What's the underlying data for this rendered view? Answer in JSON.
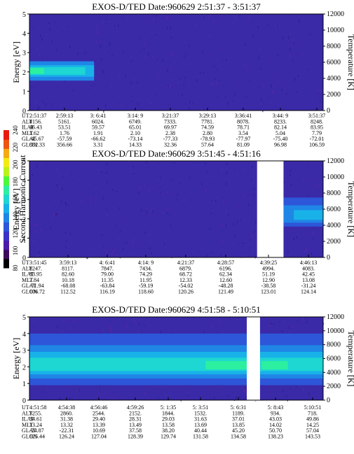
{
  "colorbar": {
    "label": "Second Harmonic Current",
    "ticks": [
      "80",
      "100",
      "120",
      "140",
      "160",
      "180",
      "200",
      "220",
      "240"
    ],
    "colors": [
      "#000000",
      "#3b0a5c",
      "#4b1aa8",
      "#3a33c6",
      "#2d56d9",
      "#1f86e6",
      "#18b2e8",
      "#1ed6d2",
      "#2cf0a0",
      "#4cf83a",
      "#b8f21c",
      "#f2ea14",
      "#f5a915",
      "#ee5413",
      "#e81b10"
    ]
  },
  "chart_data": [
    {
      "type": "heatmap",
      "title": "EXOS-D/TED   Date:960629  2:51:37 - 3:51:37",
      "ylabel": "Energy [eV]",
      "y2label": "Temperature [K]",
      "ylim": [
        0,
        5
      ],
      "y2lim": [
        0,
        12000
      ],
      "yticks": [
        "0",
        "1",
        "2",
        "3",
        "4",
        "5"
      ],
      "y2ticks": [
        "0",
        "2000",
        "4000",
        "6000",
        "8000",
        "10000",
        "12000"
      ],
      "background_color": "#3a2aa8",
      "gaps": [],
      "bands": [
        {
          "x0": 0.0,
          "x1": 0.22,
          "y0": 1.55,
          "y1": 2.55,
          "color": "#1f86e6"
        },
        {
          "x0": 0.0,
          "x1": 0.22,
          "y0": 1.75,
          "y1": 2.35,
          "color": "#18b2e8"
        },
        {
          "x0": 0.0,
          "x1": 0.19,
          "y0": 1.85,
          "y1": 2.25,
          "color": "#1ed6d2"
        },
        {
          "x0": 0.0,
          "x1": 0.05,
          "y0": 1.9,
          "y1": 2.2,
          "color": "#2cf0a0"
        }
      ],
      "table": {
        "labels": [
          "UT",
          "ALT",
          "ILAT",
          "MLT",
          "GLAT",
          "GLON"
        ],
        "columns": [
          [
            "2:51:37",
            "4156.",
            "46.43",
            "1.62",
            "-45.67",
            "352.33"
          ],
          [
            "2:59:13",
            "5161.",
            "53.51",
            "1.76",
            "-57.59",
            "356.66"
          ],
          [
            "3: 6:41",
            "6024.",
            "59.57",
            "1.91",
            "-66.62",
            "3.31"
          ],
          [
            "3:14: 9",
            "6749.",
            "65.01",
            "2.10",
            "-73.14",
            "14.33"
          ],
          [
            "3:21:37",
            "7333.",
            "69.97",
            "2.38",
            "-77.33",
            "32.36"
          ],
          [
            "3:29:13",
            "7781.",
            "74.59",
            "2.80",
            "-78.93",
            "57.64"
          ],
          [
            "3:36:41",
            "8078.",
            "78.71",
            "3.54",
            "-77.97",
            "81.09"
          ],
          [
            "3:44: 9",
            "8233.",
            "82.14",
            "5.04",
            "-75.40",
            "96.98"
          ],
          [
            "3:51:37",
            "8248.",
            "83.95",
            "7.79",
            "-72.01",
            "106.59"
          ]
        ]
      }
    },
    {
      "type": "heatmap",
      "title": "EXOS-D/TED   Date:960629  3:51:45 - 4:51:16",
      "ylabel": "Energy [eV]",
      "y2label": "Temperature [K]",
      "ylim": [
        0,
        5
      ],
      "y2lim": [
        0,
        12000
      ],
      "yticks": [
        "0",
        "1",
        "2",
        "3",
        "4",
        "5"
      ],
      "y2ticks": [
        "0",
        "2000",
        "4000",
        "6000",
        "8000",
        "10000",
        "12000"
      ],
      "background_color": "#3a2aa8",
      "gaps": [
        {
          "x0": 0.775,
          "x1": 0.865
        }
      ],
      "bands": [
        {
          "x0": 0.865,
          "x1": 1.0,
          "y0": 1.6,
          "y1": 3.1,
          "color": "#2d56d9"
        },
        {
          "x0": 0.865,
          "x1": 1.0,
          "y0": 1.8,
          "y1": 2.7,
          "color": "#1f86e6"
        },
        {
          "x0": 0.9,
          "x1": 1.0,
          "y0": 1.95,
          "y1": 2.45,
          "color": "#18b2e8"
        }
      ],
      "table": {
        "labels": [
          "UT",
          "ALT",
          "ILAT",
          "MLT",
          "GLAT",
          "GLON"
        ],
        "columns": [
          [
            "3:51:45",
            "8247.",
            "83.95",
            "7.84",
            "-71.94",
            "106.72"
          ],
          [
            "3:59:13",
            "8117.",
            "82.60",
            "10.18",
            "-68.08",
            "112.52"
          ],
          [
            "4: 6:41",
            "7847.",
            "79.00",
            "11.35",
            "-63.84",
            "116.19"
          ],
          [
            "4:14: 9",
            "7434.",
            "74.29",
            "11.95",
            "-59.19",
            "118.60"
          ],
          [
            "4:21:37",
            "6879.",
            "68.72",
            "12.33",
            "-54.02",
            "120.26"
          ],
          [
            "4:28:57",
            "6196.",
            "62.34",
            "12.60",
            "-48.28",
            "121.49"
          ],
          [
            "4:39:25",
            "4994.",
            "51.19",
            "12.90",
            "-38.58",
            "123.01"
          ],
          [
            "4:46:13",
            "4083.",
            "42.45",
            "13.08",
            "-31.24",
            "124.14"
          ]
        ]
      }
    },
    {
      "type": "heatmap",
      "title": "EXOS-D/TED   Date:960629  4:51:58 - 5:10:51",
      "ylabel": "Energy [eV]",
      "y2label": "Temperature [K]",
      "ylim": [
        0,
        5
      ],
      "y2lim": [
        0,
        12000
      ],
      "yticks": [
        "0",
        "1",
        "2",
        "3",
        "4",
        "5"
      ],
      "y2ticks": [
        "0",
        "2000",
        "4000",
        "6000",
        "8000",
        "10000",
        "12000"
      ],
      "background_color": "#3a2aa8",
      "gaps": [
        {
          "x0": 0.74,
          "x1": 0.785
        }
      ],
      "bands": [
        {
          "x0": 0.0,
          "x1": 1.0,
          "y0": 0.9,
          "y1": 4.0,
          "color": "#2d56d9"
        },
        {
          "x0": 0.0,
          "x1": 1.0,
          "y0": 1.3,
          "y1": 3.3,
          "color": "#1f86e6"
        },
        {
          "x0": 0.0,
          "x1": 1.0,
          "y0": 1.55,
          "y1": 2.9,
          "color": "#18b2e8"
        },
        {
          "x0": 0.0,
          "x1": 1.0,
          "y0": 1.75,
          "y1": 2.55,
          "color": "#1ed6d2"
        },
        {
          "x0": 0.6,
          "x1": 0.74,
          "y0": 1.85,
          "y1": 2.35,
          "color": "#2cf0a0"
        },
        {
          "x0": 0.79,
          "x1": 0.88,
          "y0": 1.85,
          "y1": 2.35,
          "color": "#2cf0a0"
        }
      ],
      "table": {
        "labels": [
          "UT",
          "ALT",
          "ILAT",
          "MLT",
          "GLAT",
          "GLON"
        ],
        "columns": [
          [
            "4:51:58",
            "3255.",
            "34.61",
            "13.24",
            "-24.87",
            "125.44"
          ],
          [
            "4:54:38",
            "2860.",
            "31.38",
            "13.32",
            "-22.31",
            "126.24"
          ],
          [
            "4:56:46",
            "2544.",
            "29.40",
            "13.39",
            "10.69",
            "127.04"
          ],
          [
            "4:59:26",
            "2152.",
            "28.31",
            "13.49",
            "37.58",
            "128.39"
          ],
          [
            "5: 1:35",
            "1844.",
            "29.03",
            "13.58",
            "38.20",
            "129.74"
          ],
          [
            "5: 3:51",
            "1532.",
            "31.63",
            "13.69",
            "40.44",
            "131.58"
          ],
          [
            "5: 6:31",
            "1189.",
            "37.01",
            "13.85",
            "45.20",
            "134.58"
          ],
          [
            "5: 8:43",
            "934.",
            "43.03",
            "14.02",
            "50.70",
            "138.23"
          ],
          [
            "5:10:51",
            "718.",
            "49.86",
            "14.25",
            "57.04",
            "143.53"
          ]
        ]
      }
    }
  ]
}
